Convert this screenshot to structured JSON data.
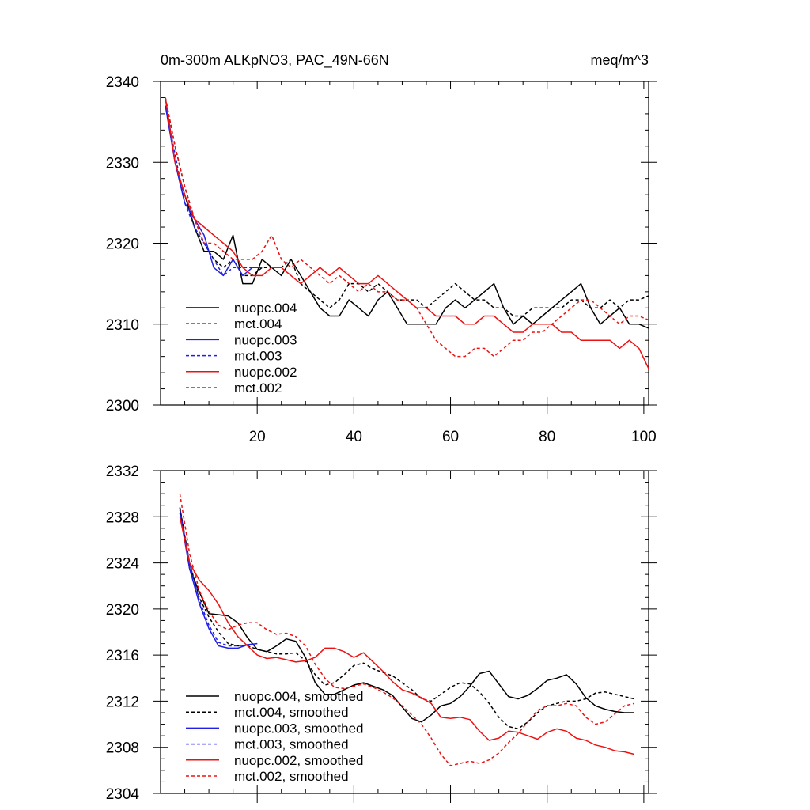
{
  "chart_data": [
    {
      "type": "line",
      "title": "0m-300m ALKpNO3, PAC_49N-66N",
      "units": "meq/m^3",
      "xlabel": "",
      "ylabel": "",
      "xlim": [
        0,
        101
      ],
      "ylim": [
        2300,
        2340
      ],
      "xticks": [
        20,
        40,
        60,
        80,
        100
      ],
      "xtick_labels": [
        "20",
        "40",
        "60",
        "80",
        "100"
      ],
      "yticks": [
        2300,
        2310,
        2320,
        2330,
        2340
      ],
      "ytick_labels": [
        "2300",
        "2310",
        "2320",
        "2330",
        "2340"
      ],
      "legend_position": "bottom-left",
      "series": [
        {
          "name": "nuopc.004",
          "color": "#000000",
          "dash": "solid",
          "x": [
            1,
            3,
            5,
            7,
            9,
            11,
            13,
            15,
            17,
            19,
            21,
            23,
            25,
            27,
            29,
            31,
            33,
            35,
            37,
            39,
            41,
            43,
            45,
            47,
            49,
            51,
            53,
            55,
            57,
            59,
            61,
            63,
            65,
            67,
            69,
            71,
            73,
            75,
            77,
            79,
            81,
            83,
            85,
            87,
            89,
            91,
            93,
            95,
            97,
            99,
            101
          ],
          "values": [
            2338,
            2330,
            2326,
            2322,
            2319,
            2319,
            2318,
            2321,
            2315,
            2315,
            2318,
            2317,
            2316,
            2318,
            2316,
            2314,
            2312,
            2311,
            2311,
            2313,
            2312,
            2311,
            2313,
            2314,
            2312,
            2310,
            2310,
            2310,
            2310,
            2312,
            2313,
            2312,
            2313,
            2314,
            2315,
            2312,
            2310,
            2311,
            2310,
            2311,
            2312,
            2313,
            2314,
            2315,
            2312,
            2310,
            2311,
            2312,
            2310,
            2310,
            2309.5
          ]
        },
        {
          "name": "mct.004",
          "color": "#000000",
          "dash": "dashed",
          "x": [
            1,
            3,
            5,
            7,
            9,
            11,
            13,
            15,
            17,
            19,
            21,
            23,
            25,
            27,
            29,
            31,
            33,
            35,
            37,
            39,
            41,
            43,
            45,
            47,
            49,
            51,
            53,
            55,
            57,
            59,
            61,
            63,
            65,
            67,
            69,
            71,
            73,
            75,
            77,
            79,
            81,
            83,
            85,
            87,
            89,
            91,
            93,
            95,
            97,
            99,
            101
          ],
          "values": [
            2338,
            2332,
            2327,
            2323,
            2320,
            2318,
            2317,
            2318,
            2316,
            2316,
            2317,
            2317,
            2317,
            2318,
            2315,
            2314,
            2313,
            2312,
            2313,
            2315,
            2315,
            2314,
            2315,
            2314,
            2313,
            2313,
            2313,
            2312,
            2313,
            2314,
            2315,
            2314,
            2313,
            2313,
            2312,
            2312,
            2311,
            2311,
            2312,
            2312,
            2312,
            2312,
            2313,
            2313,
            2312,
            2312,
            2313,
            2312,
            2313,
            2313,
            2313.5
          ]
        },
        {
          "name": "nuopc.003",
          "color": "#1f1fe6",
          "dash": "solid",
          "x": [
            1,
            3,
            5,
            7,
            9,
            11,
            13,
            15,
            17,
            19,
            21
          ],
          "values": [
            2337,
            2330,
            2325,
            2323,
            2321,
            2317,
            2316,
            2318,
            2316,
            2317,
            2317
          ]
        },
        {
          "name": "mct.003",
          "color": "#1f1fe6",
          "dash": "dashed",
          "x": [
            1,
            3,
            5,
            7,
            9,
            11,
            13,
            15,
            17,
            19,
            21
          ],
          "values": [
            2337,
            2331,
            2325,
            2322,
            2320,
            2318,
            2316,
            2317,
            2317,
            2317,
            2317
          ]
        },
        {
          "name": "nuopc.002",
          "color": "#ee1111",
          "dash": "solid",
          "x": [
            1,
            3,
            5,
            7,
            9,
            11,
            13,
            15,
            17,
            19,
            21,
            23,
            25,
            27,
            29,
            31,
            33,
            35,
            37,
            39,
            41,
            43,
            45,
            47,
            49,
            51,
            53,
            55,
            57,
            59,
            61,
            63,
            65,
            67,
            69,
            71,
            73,
            75,
            77,
            79,
            81,
            83,
            85,
            87,
            89,
            91,
            93,
            95,
            97,
            99,
            101
          ],
          "values": [
            2338,
            2330,
            2326,
            2323,
            2322,
            2321,
            2320,
            2319,
            2317,
            2316,
            2316,
            2317,
            2317,
            2316,
            2315,
            2316,
            2317,
            2316,
            2317,
            2316,
            2315,
            2315,
            2316,
            2315,
            2314,
            2313,
            2312,
            2312,
            2311,
            2311,
            2311,
            2310,
            2310,
            2311,
            2311,
            2310,
            2309,
            2309,
            2310,
            2310,
            2310,
            2309,
            2309,
            2308,
            2308,
            2308,
            2308,
            2307,
            2308,
            2307,
            2304.5
          ]
        },
        {
          "name": "mct.002",
          "color": "#ee1111",
          "dash": "dashed",
          "x": [
            1,
            3,
            5,
            7,
            9,
            11,
            13,
            15,
            17,
            19,
            21,
            23,
            25,
            27,
            29,
            31,
            33,
            35,
            37,
            39,
            41,
            43,
            45,
            47,
            49,
            51,
            53,
            55,
            57,
            59,
            61,
            63,
            65,
            67,
            69,
            71,
            73,
            75,
            77,
            79,
            81,
            83,
            85,
            87,
            89,
            91,
            93,
            95,
            97,
            99,
            101
          ],
          "values": [
            2338,
            2332,
            2327,
            2323,
            2320,
            2320,
            2319,
            2318,
            2318,
            2318,
            2319,
            2321,
            2318,
            2317,
            2318,
            2317,
            2316,
            2315,
            2316,
            2315,
            2314,
            2315,
            2314,
            2314,
            2313,
            2313,
            2312,
            2310,
            2308,
            2307,
            2306,
            2306,
            2307,
            2307,
            2306,
            2307,
            2308,
            2308,
            2309,
            2309,
            2310,
            2311,
            2312,
            2313,
            2313,
            2312,
            2311,
            2310,
            2311,
            2311,
            2310.5
          ]
        }
      ]
    },
    {
      "type": "line",
      "title": "",
      "xlabel": "",
      "ylabel": "",
      "xlim": [
        0,
        101
      ],
      "ylim": [
        2304,
        2332
      ],
      "xticks": [
        20,
        40,
        60,
        80,
        100
      ],
      "yticks": [
        2304,
        2308,
        2312,
        2316,
        2320,
        2324,
        2328,
        2332
      ],
      "ytick_labels": [
        "2304",
        "2308",
        "2312",
        "2316",
        "2320",
        "2324",
        "2328",
        "2332"
      ],
      "legend_position": "bottom-left",
      "series": [
        {
          "name": "nuopc.004, smoothed",
          "color": "#000000",
          "dash": "solid",
          "x": [
            4,
            6,
            8,
            10,
            12,
            14,
            16,
            18,
            20,
            22,
            24,
            26,
            28,
            30,
            32,
            34,
            36,
            38,
            40,
            42,
            44,
            46,
            48,
            50,
            52,
            54,
            56,
            58,
            60,
            62,
            64,
            66,
            68,
            70,
            72,
            74,
            76,
            78,
            80,
            82,
            84,
            86,
            88,
            90,
            92,
            94,
            96,
            98
          ],
          "values": [
            2328.8,
            2323.5,
            2321.5,
            2319.6,
            2319.5,
            2319.4,
            2318.8,
            2317.5,
            2316.5,
            2316.3,
            2316.8,
            2317.4,
            2317.2,
            2315.8,
            2313.6,
            2312.6,
            2312.6,
            2313.0,
            2313.4,
            2313.6,
            2313.3,
            2313.0,
            2312.5,
            2311.5,
            2310.5,
            2310.2,
            2310.8,
            2311.6,
            2311.8,
            2312.4,
            2313.3,
            2314.4,
            2314.6,
            2313.5,
            2312.4,
            2312.2,
            2312.5,
            2313.1,
            2313.8,
            2314.0,
            2314.3,
            2313.5,
            2312.3,
            2311.6,
            2311.3,
            2311.1,
            2311.0,
            2311.0
          ]
        },
        {
          "name": "mct.004, smoothed",
          "color": "#000000",
          "dash": "dashed",
          "x": [
            4,
            6,
            8,
            10,
            12,
            14,
            16,
            18,
            20,
            22,
            24,
            26,
            28,
            30,
            32,
            34,
            36,
            38,
            40,
            42,
            44,
            46,
            48,
            50,
            52,
            54,
            56,
            58,
            60,
            62,
            64,
            66,
            68,
            70,
            72,
            74,
            76,
            78,
            80,
            82,
            84,
            86,
            88,
            90,
            92,
            94,
            96,
            98
          ],
          "values": [
            2328.8,
            2324.0,
            2321.0,
            2319.3,
            2318.0,
            2317.0,
            2316.8,
            2316.8,
            2316.5,
            2316.3,
            2316.1,
            2316.1,
            2316.2,
            2315.5,
            2314.3,
            2313.4,
            2313.6,
            2314.3,
            2315.1,
            2315.3,
            2314.8,
            2314.5,
            2314.2,
            2313.6,
            2313.0,
            2312.2,
            2312.0,
            2312.6,
            2313.2,
            2313.6,
            2313.5,
            2312.8,
            2311.8,
            2310.6,
            2309.8,
            2309.6,
            2310.2,
            2311.0,
            2311.6,
            2311.8,
            2312.0,
            2312.0,
            2312.2,
            2312.7,
            2312.8,
            2312.6,
            2312.4,
            2312.2
          ]
        },
        {
          "name": "nuopc.003, smoothed",
          "color": "#1f1fe6",
          "dash": "solid",
          "x": [
            4,
            6,
            8,
            10,
            12,
            14,
            16,
            18,
            20
          ],
          "values": [
            2328.3,
            2323.5,
            2320.5,
            2318.3,
            2316.8,
            2316.6,
            2316.6,
            2316.9,
            2317.0
          ]
        },
        {
          "name": "mct.003, smoothed",
          "color": "#1f1fe6",
          "dash": "dashed",
          "x": [
            4,
            6,
            8,
            10,
            12,
            14,
            16,
            18,
            20
          ],
          "values": [
            2328.6,
            2324.0,
            2320.8,
            2318.6,
            2317.1,
            2316.8,
            2316.8,
            2316.9,
            2317.0
          ]
        },
        {
          "name": "nuopc.002, smoothed",
          "color": "#ee1111",
          "dash": "solid",
          "x": [
            4,
            6,
            8,
            10,
            12,
            14,
            16,
            18,
            20,
            22,
            24,
            26,
            28,
            30,
            32,
            34,
            36,
            38,
            40,
            42,
            44,
            46,
            48,
            50,
            52,
            54,
            56,
            58,
            60,
            62,
            64,
            66,
            68,
            70,
            72,
            74,
            76,
            78,
            80,
            82,
            84,
            86,
            88,
            90,
            92,
            94,
            96,
            98
          ],
          "values": [
            2328.0,
            2324.0,
            2322.5,
            2321.6,
            2320.4,
            2318.8,
            2317.6,
            2316.8,
            2316.0,
            2315.7,
            2315.8,
            2315.6,
            2315.4,
            2315.5,
            2315.8,
            2316.6,
            2316.6,
            2316.3,
            2315.8,
            2316.2,
            2315.4,
            2314.6,
            2313.7,
            2313.0,
            2312.7,
            2312.3,
            2311.8,
            2310.6,
            2310.5,
            2310.6,
            2310.4,
            2309.4,
            2308.6,
            2308.8,
            2309.4,
            2309.3,
            2309.0,
            2308.7,
            2309.3,
            2309.6,
            2309.4,
            2308.8,
            2308.6,
            2308.2,
            2308.0,
            2307.7,
            2307.6,
            2307.4
          ]
        },
        {
          "name": "mct.002, smoothed",
          "color": "#ee1111",
          "dash": "dashed",
          "x": [
            4,
            6,
            8,
            10,
            12,
            14,
            16,
            18,
            20,
            22,
            24,
            26,
            28,
            30,
            32,
            34,
            36,
            38,
            40,
            42,
            44,
            46,
            48,
            50,
            52,
            54,
            56,
            58,
            60,
            62,
            64,
            66,
            68,
            70,
            72,
            74,
            76,
            78,
            80,
            82,
            84,
            86,
            88,
            90,
            92,
            94,
            96,
            98
          ],
          "values": [
            2330.0,
            2324.8,
            2321.6,
            2319.8,
            2318.6,
            2318.2,
            2318.6,
            2318.8,
            2318.8,
            2318.2,
            2317.8,
            2317.9,
            2317.6,
            2316.8,
            2315.2,
            2314.0,
            2313.2,
            2313.1,
            2313.3,
            2313.5,
            2313.2,
            2312.8,
            2312.3,
            2311.6,
            2310.8,
            2310.0,
            2308.8,
            2307.4,
            2306.4,
            2306.6,
            2306.8,
            2306.6,
            2306.9,
            2307.5,
            2308.4,
            2309.2,
            2310.2,
            2311.2,
            2311.6,
            2311.6,
            2311.8,
            2311.6,
            2310.6,
            2310.0,
            2310.2,
            2310.9,
            2311.6,
            2311.8
          ]
        }
      ]
    }
  ]
}
